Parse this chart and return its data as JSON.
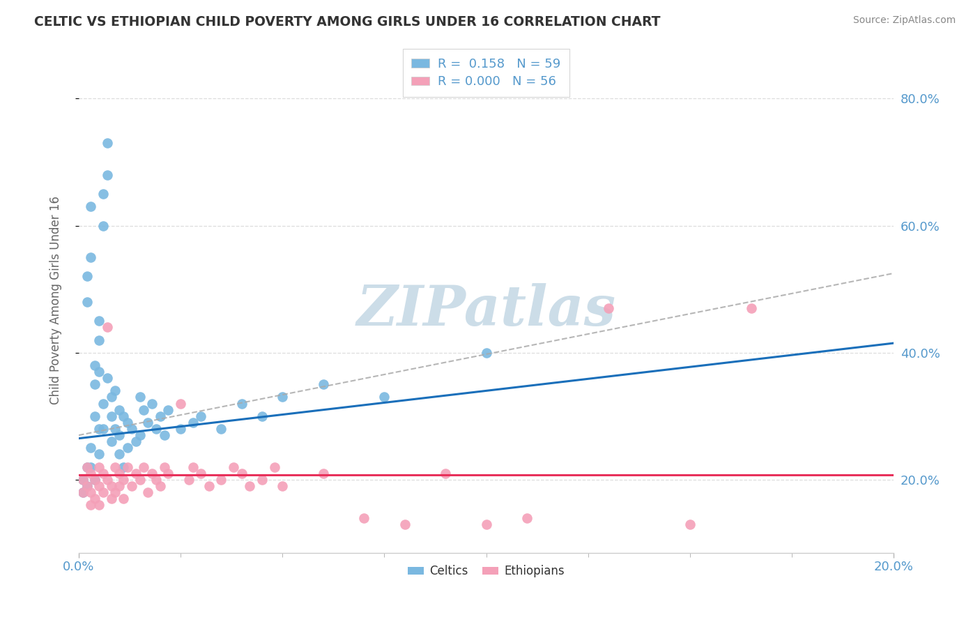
{
  "title": "CELTIC VS ETHIOPIAN CHILD POVERTY AMONG GIRLS UNDER 16 CORRELATION CHART",
  "source": "Source: ZipAtlas.com",
  "ylabel": "Child Poverty Among Girls Under 16",
  "ytick_labels": [
    "80.0%",
    "60.0%",
    "40.0%",
    "20.0%"
  ],
  "ytick_vals": [
    0.8,
    0.6,
    0.4,
    0.2
  ],
  "xlim": [
    0.0,
    0.2
  ],
  "ylim": [
    0.085,
    0.88
  ],
  "celtics_color": "#7ab8e0",
  "ethiopians_color": "#f4a0b8",
  "celtics_line_color": "#1a6fba",
  "ethiopians_line_color": "#e8315b",
  "dashed_line_color": "#aaaaaa",
  "watermark": "ZIPatlas",
  "watermark_color": "#ccdde8",
  "R_celtics": 0.158,
  "N_celtics": 59,
  "R_ethiopians": 0.0,
  "N_ethiopians": 56,
  "background_color": "#ffffff",
  "grid_color": "#dddddd",
  "title_color": "#333333",
  "axis_label_color": "#666666",
  "tick_label_color": "#5599cc",
  "celtics_x": [
    0.001,
    0.001,
    0.002,
    0.002,
    0.002,
    0.002,
    0.003,
    0.003,
    0.003,
    0.003,
    0.004,
    0.004,
    0.004,
    0.004,
    0.005,
    0.005,
    0.005,
    0.005,
    0.005,
    0.006,
    0.006,
    0.006,
    0.006,
    0.007,
    0.007,
    0.007,
    0.008,
    0.008,
    0.008,
    0.009,
    0.009,
    0.01,
    0.01,
    0.01,
    0.011,
    0.011,
    0.012,
    0.012,
    0.013,
    0.014,
    0.015,
    0.015,
    0.016,
    0.017,
    0.018,
    0.019,
    0.02,
    0.021,
    0.022,
    0.025,
    0.028,
    0.03,
    0.035,
    0.04,
    0.045,
    0.05,
    0.06,
    0.075,
    0.1
  ],
  "celtics_y": [
    0.2,
    0.18,
    0.22,
    0.19,
    0.52,
    0.48,
    0.63,
    0.55,
    0.25,
    0.22,
    0.2,
    0.38,
    0.35,
    0.3,
    0.45,
    0.42,
    0.37,
    0.28,
    0.24,
    0.65,
    0.6,
    0.32,
    0.28,
    0.73,
    0.68,
    0.36,
    0.33,
    0.3,
    0.26,
    0.34,
    0.28,
    0.31,
    0.27,
    0.24,
    0.3,
    0.22,
    0.29,
    0.25,
    0.28,
    0.26,
    0.33,
    0.27,
    0.31,
    0.29,
    0.32,
    0.28,
    0.3,
    0.27,
    0.31,
    0.28,
    0.29,
    0.3,
    0.28,
    0.32,
    0.3,
    0.33,
    0.35,
    0.33,
    0.4
  ],
  "ethiopians_x": [
    0.001,
    0.001,
    0.002,
    0.002,
    0.003,
    0.003,
    0.003,
    0.004,
    0.004,
    0.005,
    0.005,
    0.005,
    0.006,
    0.006,
    0.007,
    0.007,
    0.008,
    0.008,
    0.009,
    0.009,
    0.01,
    0.01,
    0.011,
    0.011,
    0.012,
    0.013,
    0.014,
    0.015,
    0.016,
    0.017,
    0.018,
    0.019,
    0.02,
    0.021,
    0.022,
    0.025,
    0.027,
    0.028,
    0.03,
    0.032,
    0.035,
    0.038,
    0.04,
    0.042,
    0.045,
    0.048,
    0.05,
    0.06,
    0.07,
    0.08,
    0.09,
    0.1,
    0.11,
    0.13,
    0.15,
    0.165
  ],
  "ethiopians_y": [
    0.2,
    0.18,
    0.22,
    0.19,
    0.21,
    0.18,
    0.16,
    0.2,
    0.17,
    0.22,
    0.19,
    0.16,
    0.21,
    0.18,
    0.44,
    0.2,
    0.19,
    0.17,
    0.22,
    0.18,
    0.21,
    0.19,
    0.2,
    0.17,
    0.22,
    0.19,
    0.21,
    0.2,
    0.22,
    0.18,
    0.21,
    0.2,
    0.19,
    0.22,
    0.21,
    0.32,
    0.2,
    0.22,
    0.21,
    0.19,
    0.2,
    0.22,
    0.21,
    0.19,
    0.2,
    0.22,
    0.19,
    0.21,
    0.14,
    0.13,
    0.21,
    0.13,
    0.14,
    0.47,
    0.13,
    0.47
  ],
  "celtics_line_x": [
    0.0,
    0.2
  ],
  "celtics_line_y": [
    0.265,
    0.415
  ],
  "ethiopians_line_x": [
    0.0,
    0.2
  ],
  "ethiopians_line_y": [
    0.208,
    0.208
  ],
  "dash_line_x": [
    0.0,
    0.2
  ],
  "dash_line_y": [
    0.27,
    0.525
  ]
}
